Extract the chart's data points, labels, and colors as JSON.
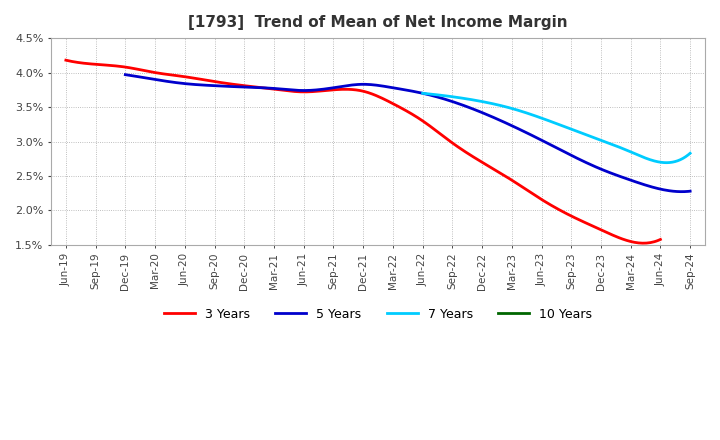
{
  "title": "[1793]  Trend of Mean of Net Income Margin",
  "ylim": [
    0.015,
    0.045
  ],
  "background_color": "#ffffff",
  "grid_color": "#aaaaaa",
  "x_labels": [
    "Jun-19",
    "Sep-19",
    "Dec-19",
    "Mar-20",
    "Jun-20",
    "Sep-20",
    "Dec-20",
    "Mar-21",
    "Jun-21",
    "Sep-21",
    "Dec-21",
    "Mar-22",
    "Jun-22",
    "Sep-22",
    "Dec-22",
    "Mar-23",
    "Jun-23",
    "Sep-23",
    "Dec-23",
    "Mar-24",
    "Jun-24",
    "Sep-24"
  ],
  "series": {
    "3 Years": {
      "color": "#ff0000",
      "linewidth": 2.0,
      "values": [
        0.0418,
        0.0412,
        0.0408,
        0.04,
        0.0394,
        0.0387,
        0.0381,
        0.0376,
        0.0372,
        0.0375,
        0.0373,
        0.0355,
        0.033,
        0.0298,
        0.027,
        0.0244,
        0.0216,
        0.0192,
        0.0172,
        0.0155,
        0.0158,
        null
      ]
    },
    "5 Years": {
      "color": "#0000cc",
      "linewidth": 2.0,
      "values": [
        null,
        null,
        0.0397,
        0.039,
        0.0384,
        0.0381,
        0.0379,
        0.0377,
        0.0374,
        0.0378,
        0.0383,
        0.0378,
        0.037,
        0.0358,
        0.0342,
        0.0323,
        0.0302,
        0.028,
        0.026,
        0.0244,
        0.0231,
        0.0228
      ]
    },
    "7 Years": {
      "color": "#00ccff",
      "linewidth": 2.0,
      "values": [
        null,
        null,
        null,
        null,
        null,
        null,
        null,
        null,
        null,
        null,
        null,
        null,
        0.037,
        0.0365,
        0.0358,
        0.0348,
        0.0334,
        0.0318,
        0.0302,
        0.0285,
        0.027,
        0.0283
      ]
    },
    "10 Years": {
      "color": "#006600",
      "linewidth": 2.0,
      "values": [
        null,
        null,
        null,
        null,
        null,
        null,
        null,
        null,
        null,
        null,
        null,
        null,
        null,
        null,
        null,
        null,
        null,
        null,
        null,
        null,
        null,
        null
      ]
    }
  },
  "legend_entries": [
    "3 Years",
    "5 Years",
    "7 Years",
    "10 Years"
  ],
  "legend_colors": [
    "#ff0000",
    "#0000cc",
    "#00ccff",
    "#006600"
  ]
}
